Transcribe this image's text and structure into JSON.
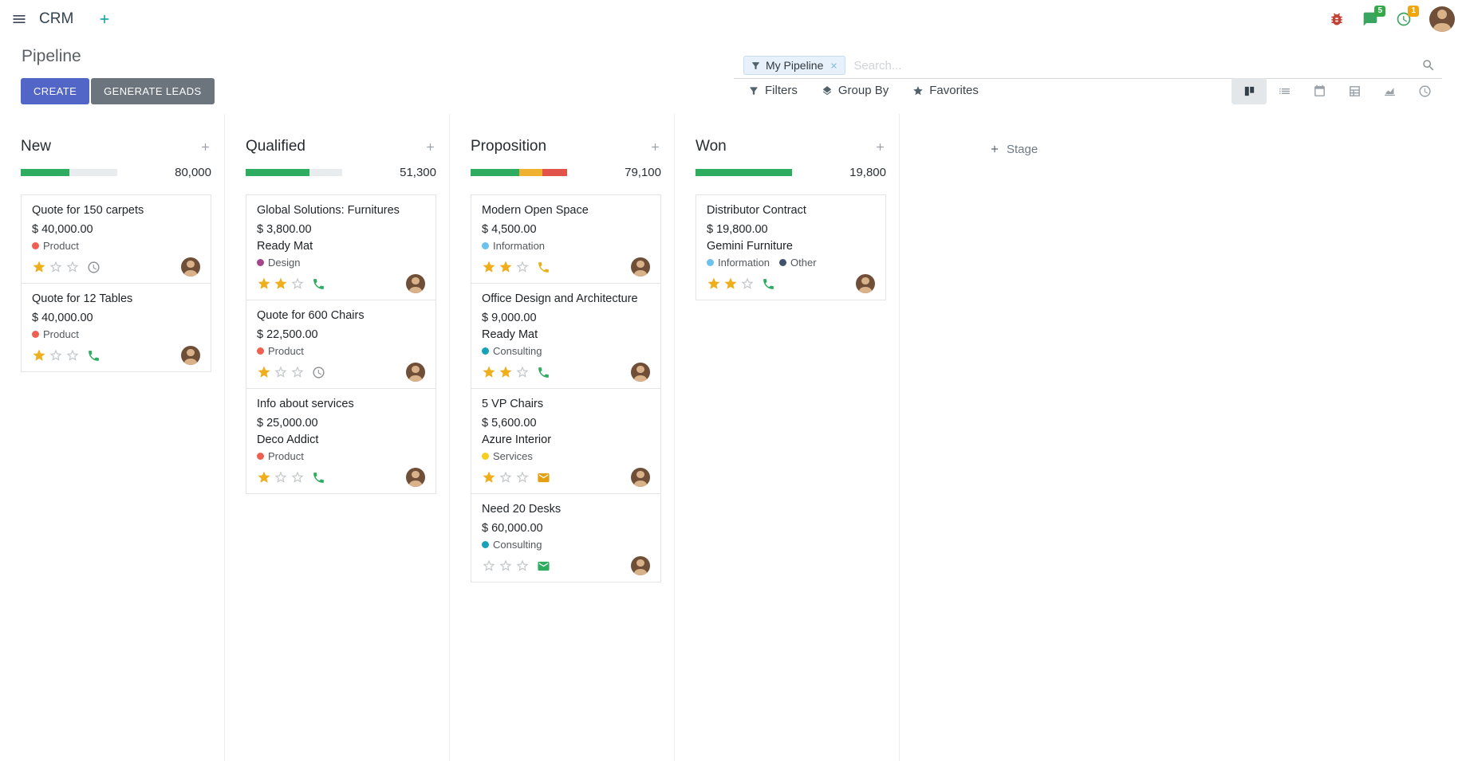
{
  "theme": {
    "primary": "#5166c6",
    "secondary_button": "#6c747e",
    "accent_teal": "#00a09d",
    "star_gold": "#efaf1d",
    "nav_icon_green": "#3aa55f",
    "bug_red": "#c14438",
    "badge_green": "#35a949",
    "badge_orange": "#f2a60d",
    "progress_empty": "#e9ecef"
  },
  "navbar": {
    "app_name": "CRM",
    "messages_badge": "5",
    "activities_badge": "1"
  },
  "control_panel": {
    "title": "Pipeline",
    "create_label": "CREATE",
    "generate_leads_label": "GENERATE LEADS",
    "search": {
      "facet": "My Pipeline",
      "placeholder": "Search..."
    },
    "filters_label": "Filters",
    "group_by_label": "Group By",
    "favorites_label": "Favorites"
  },
  "board": {
    "add_stage_label": "Stage",
    "columns": [
      {
        "name": "New",
        "total": "80,000",
        "progress": [
          {
            "color": "#2ead61",
            "pct": 50
          },
          {
            "color": "#e9ecef",
            "pct": 50
          }
        ],
        "cards": [
          {
            "title": "Quote for 150 carpets",
            "amount": "$ 40,000.00",
            "tags": [
              {
                "label": "Product",
                "color": "#f06050"
              }
            ],
            "stars": 1,
            "activity": {
              "icon": "clock",
              "color": "#8f9398"
            }
          },
          {
            "title": "Quote for 12 Tables",
            "amount": "$ 40,000.00",
            "tags": [
              {
                "label": "Product",
                "color": "#f06050"
              }
            ],
            "stars": 1,
            "activity": {
              "icon": "phone",
              "color": "#2ead61"
            }
          }
        ]
      },
      {
        "name": "Qualified",
        "total": "51,300",
        "progress": [
          {
            "color": "#2ead61",
            "pct": 66
          },
          {
            "color": "#e9ecef",
            "pct": 34
          }
        ],
        "cards": [
          {
            "title": "Global Solutions: Furnitures",
            "amount": "$ 3,800.00",
            "partner": "Ready Mat",
            "tags": [
              {
                "label": "Design",
                "color": "#a24689"
              }
            ],
            "stars": 2,
            "activity": {
              "icon": "phone",
              "color": "#2ead61"
            }
          },
          {
            "title": "Quote for 600 Chairs",
            "amount": "$ 22,500.00",
            "tags": [
              {
                "label": "Product",
                "color": "#f06050"
              }
            ],
            "stars": 1,
            "activity": {
              "icon": "clock",
              "color": "#8f9398"
            }
          },
          {
            "title": "Info about services",
            "amount": "$ 25,000.00",
            "partner": "Deco Addict",
            "tags": [
              {
                "label": "Product",
                "color": "#f06050"
              }
            ],
            "stars": 1,
            "activity": {
              "icon": "phone",
              "color": "#2ead61"
            }
          }
        ]
      },
      {
        "name": "Proposition",
        "total": "79,100",
        "progress": [
          {
            "color": "#2ead61",
            "pct": 50
          },
          {
            "color": "#f0b130",
            "pct": 24
          },
          {
            "color": "#e2534a",
            "pct": 26
          }
        ],
        "cards": [
          {
            "title": "Modern Open Space",
            "amount": "$ 4,500.00",
            "tags": [
              {
                "label": "Information",
                "color": "#6cc1ed"
              }
            ],
            "stars": 2,
            "activity": {
              "icon": "phone",
              "color": "#eab01c"
            }
          },
          {
            "title": "Office Design and Architecture",
            "amount": "$ 9,000.00",
            "partner": "Ready Mat",
            "tags": [
              {
                "label": "Consulting",
                "color": "#17a2b8"
              }
            ],
            "stars": 2,
            "activity": {
              "icon": "phone",
              "color": "#2ead61"
            }
          },
          {
            "title": "5 VP Chairs",
            "amount": "$ 5,600.00",
            "partner": "Azure Interior",
            "tags": [
              {
                "label": "Services",
                "color": "#f7cd1f"
              }
            ],
            "stars": 1,
            "activity": {
              "icon": "envelope",
              "color": "#e2a012"
            }
          },
          {
            "title": "Need 20 Desks",
            "amount": "$ 60,000.00",
            "tags": [
              {
                "label": "Consulting",
                "color": "#17a2b8"
              }
            ],
            "stars": 0,
            "activity": {
              "icon": "envelope",
              "color": "#2ead61"
            }
          }
        ]
      },
      {
        "name": "Won",
        "total": "19,800",
        "progress": [
          {
            "color": "#2ead61",
            "pct": 100
          }
        ],
        "cards": [
          {
            "title": "Distributor Contract",
            "amount": "$ 19,800.00",
            "partner": "Gemini Furniture",
            "tags": [
              {
                "label": "Information",
                "color": "#6cc1ed"
              },
              {
                "label": "Other",
                "color": "#42526e"
              }
            ],
            "stars": 2,
            "activity": {
              "icon": "phone",
              "color": "#2ead61"
            }
          }
        ]
      }
    ]
  }
}
